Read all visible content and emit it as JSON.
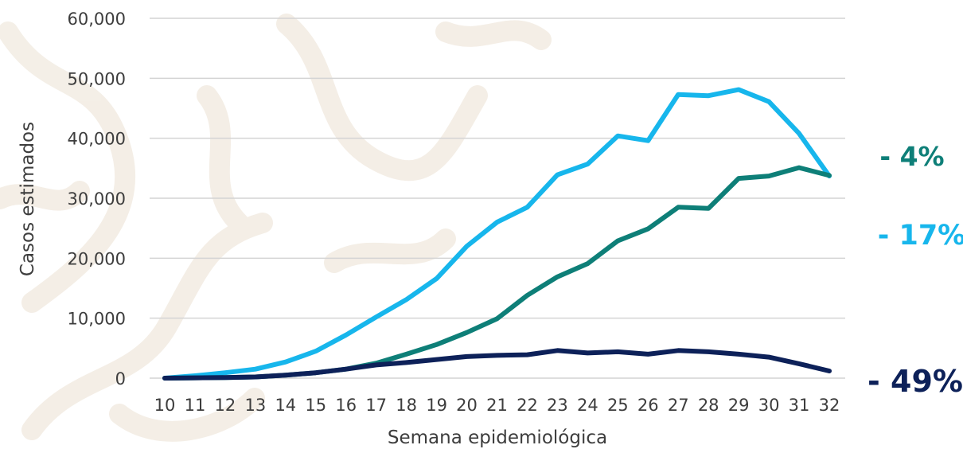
{
  "chart_data": {
    "type": "line",
    "xlabel": "Semana epidemiológica",
    "ylabel": "Casos estimados",
    "ylim": [
      0,
      60000
    ],
    "yticks": [
      0,
      10000,
      20000,
      30000,
      40000,
      50000,
      60000
    ],
    "ytick_labels": [
      "0",
      "10,000",
      "20,000",
      "30,000",
      "40,000",
      "50,000",
      "60,000"
    ],
    "x": [
      "10",
      "11",
      "12",
      "13",
      "14",
      "15",
      "16",
      "17",
      "18",
      "19",
      "20",
      "21",
      "22",
      "23",
      "24",
      "25",
      "26",
      "27",
      "28",
      "29",
      "30",
      "31",
      "32"
    ],
    "grid": true,
    "series": [
      {
        "color": "#17b6ec",
        "values": [
          0,
          400,
          900,
          1500,
          2700,
          4500,
          7200,
          10200,
          13100,
          16600,
          22000,
          26000,
          28500,
          33900,
          35700,
          40400,
          39600,
          47300,
          47100,
          48100,
          46100,
          40800,
          33700
        ]
      },
      {
        "color": "#0e7f78",
        "values": [
          0,
          50,
          100,
          200,
          500,
          900,
          1500,
          2500,
          4000,
          5600,
          7600,
          9900,
          13800,
          16900,
          19100,
          22900,
          24900,
          28500,
          28300,
          33300,
          33700,
          35100,
          33800
        ]
      },
      {
        "color": "#0d2159",
        "values": [
          0,
          50,
          100,
          200,
          500,
          900,
          1500,
          2200,
          2600,
          3100,
          3600,
          3800,
          3900,
          4600,
          4200,
          4400,
          4000,
          4600,
          4400,
          4000,
          3500,
          2400,
          1200
        ]
      }
    ],
    "annotations": [
      {
        "text": "- 4%",
        "color": "#0e7f78"
      },
      {
        "text": "- 17%",
        "color": "#17b6ec"
      },
      {
        "text": "- 49%",
        "color": "#0d2159"
      }
    ]
  }
}
